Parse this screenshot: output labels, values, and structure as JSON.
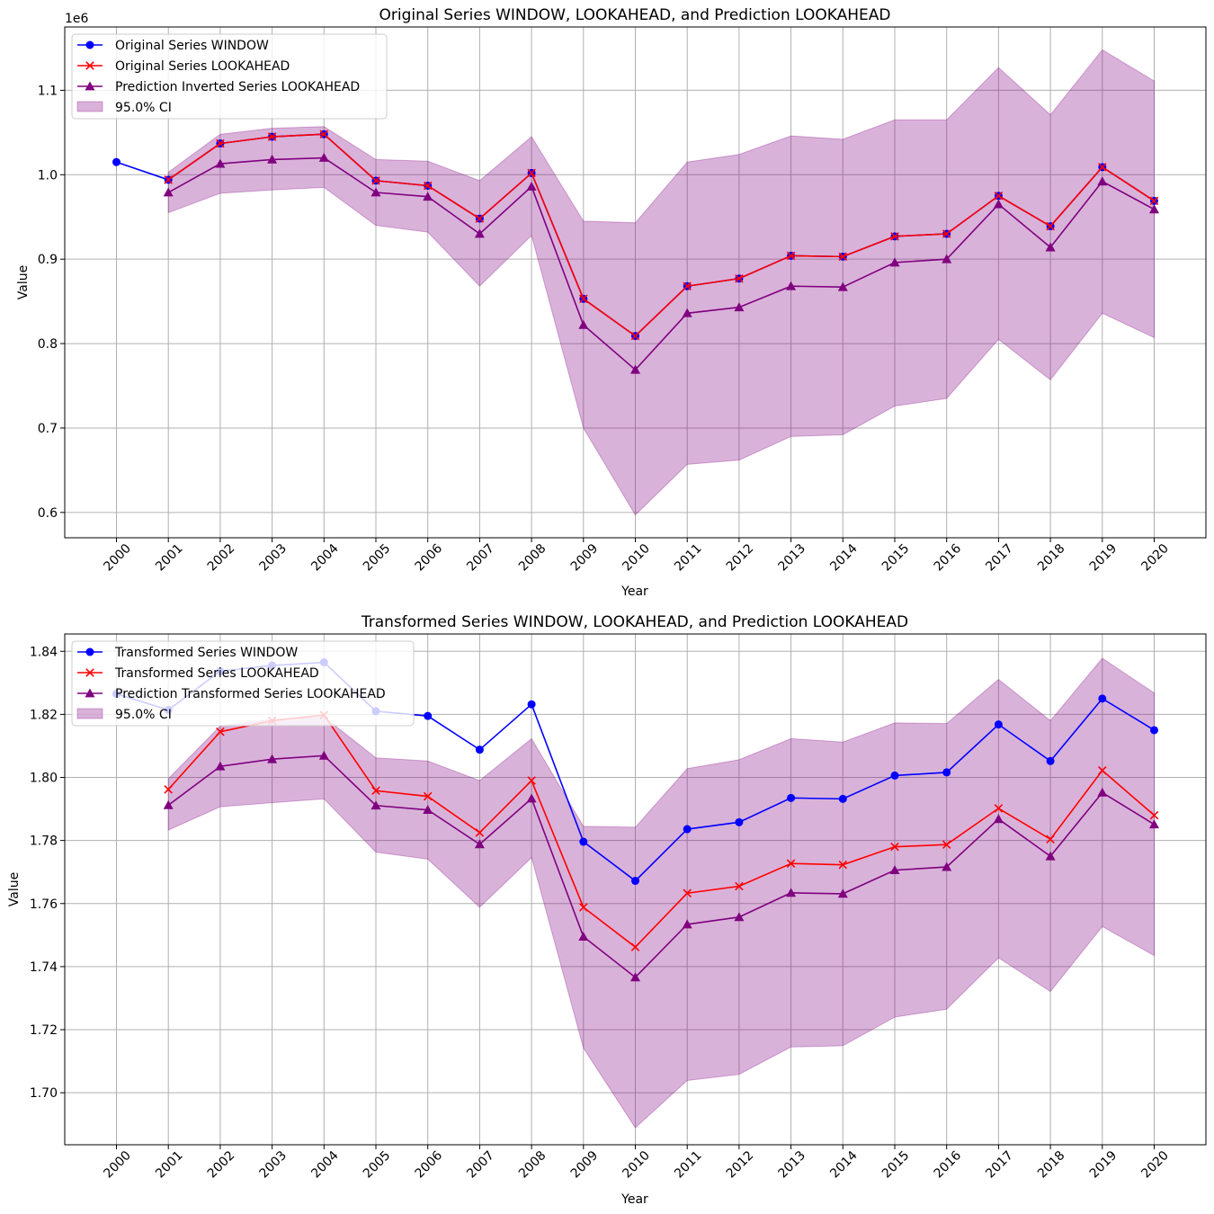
{
  "chart_data": [
    {
      "type": "line",
      "title": "Original Series WINDOW, LOOKAHEAD, and Prediction LOOKAHEAD",
      "xlabel": "Year",
      "ylabel": "Value",
      "y_offset_label": "1e6",
      "y_scale": 1000000,
      "ylim": [
        0.57,
        1.175
      ],
      "yticks": [
        0.6,
        0.7,
        0.8,
        0.9,
        1.0,
        1.1
      ],
      "ytick_labels": [
        "0.6",
        "0.7",
        "0.8",
        "0.9",
        "1.0",
        "1.1"
      ],
      "grid": true,
      "legend_position": "upper-left",
      "categories": [
        "2000",
        "2001",
        "2002",
        "2003",
        "2004",
        "2005",
        "2006",
        "2007",
        "2008",
        "2009",
        "2010",
        "2011",
        "2012",
        "2013",
        "2014",
        "2015",
        "2016",
        "2017",
        "2018",
        "2019",
        "2020"
      ],
      "series": [
        {
          "name": "Original Series WINDOW",
          "color": "#0000ff",
          "marker": "circle",
          "values": [
            1.015,
            0.994,
            1.037,
            1.045,
            1.048,
            0.993,
            0.987,
            0.948,
            1.002,
            0.853,
            0.809,
            0.868,
            0.877,
            0.904,
            0.903,
            0.927,
            0.93,
            0.975,
            0.939,
            1.009,
            0.969
          ]
        },
        {
          "name": "Original Series LOOKAHEAD",
          "color": "#ff0000",
          "marker": "x",
          "values": [
            null,
            0.994,
            1.037,
            1.045,
            1.048,
            0.993,
            0.987,
            0.948,
            1.002,
            0.853,
            0.809,
            0.868,
            0.877,
            0.904,
            0.903,
            0.927,
            0.93,
            0.975,
            0.939,
            1.009,
            0.969
          ]
        },
        {
          "name": "Prediction Inverted Series LOOKAHEAD",
          "color": "#800080",
          "marker": "triangle",
          "values": [
            null,
            0.979,
            1.013,
            1.018,
            1.02,
            0.979,
            0.974,
            0.93,
            0.986,
            0.822,
            0.769,
            0.836,
            0.843,
            0.868,
            0.867,
            0.896,
            0.9,
            0.965,
            0.914,
            0.992,
            0.959
          ]
        }
      ],
      "ci": {
        "name": "95.0% CI",
        "color": "#800080",
        "lower": [
          null,
          0.955,
          0.978,
          0.982,
          0.985,
          0.94,
          0.932,
          0.868,
          0.928,
          0.7,
          0.597,
          0.657,
          0.662,
          0.69,
          0.692,
          0.726,
          0.735,
          0.805,
          0.757,
          0.836,
          0.807
        ],
        "upper": [
          null,
          1.003,
          1.048,
          1.055,
          1.057,
          1.018,
          1.016,
          0.993,
          1.045,
          0.945,
          0.943,
          1.015,
          1.024,
          1.046,
          1.042,
          1.065,
          1.065,
          1.127,
          1.071,
          1.148,
          1.111
        ]
      }
    },
    {
      "type": "line",
      "title": "Transformed Series WINDOW, LOOKAHEAD, and Prediction LOOKAHEAD",
      "xlabel": "Year",
      "ylabel": "Value",
      "y_offset_label": "",
      "y_scale": 1,
      "ylim": [
        1.6835,
        1.8455
      ],
      "yticks": [
        1.7,
        1.72,
        1.74,
        1.76,
        1.78,
        1.8,
        1.82,
        1.84
      ],
      "ytick_labels": [
        "1.70",
        "1.72",
        "1.74",
        "1.76",
        "1.78",
        "1.80",
        "1.82",
        "1.84"
      ],
      "grid": true,
      "legend_position": "upper-left",
      "categories": [
        "2000",
        "2001",
        "2002",
        "2003",
        "2004",
        "2005",
        "2006",
        "2007",
        "2008",
        "2009",
        "2010",
        "2011",
        "2012",
        "2013",
        "2014",
        "2015",
        "2016",
        "2017",
        "2018",
        "2019",
        "2020"
      ],
      "series": [
        {
          "name": "Transformed Series WINDOW",
          "color": "#0000ff",
          "marker": "circle",
          "values": [
            1.8265,
            1.8214,
            1.8337,
            1.8355,
            1.8365,
            1.821,
            1.8195,
            1.8088,
            1.8232,
            1.7796,
            1.7672,
            1.7836,
            1.7858,
            1.7935,
            1.7932,
            1.8006,
            1.8016,
            1.8168,
            1.8052,
            1.825,
            1.815
          ]
        },
        {
          "name": "Transformed Series LOOKAHEAD",
          "color": "#ff0000",
          "marker": "x",
          "values": [
            null,
            1.7962,
            1.8145,
            1.818,
            1.8198,
            1.7958,
            1.794,
            1.7825,
            1.799,
            1.7588,
            1.7462,
            1.7633,
            1.7655,
            1.7727,
            1.7723,
            1.778,
            1.7787,
            1.7902,
            1.7804,
            1.8022,
            1.788
          ]
        },
        {
          "name": "Prediction Transformed Series LOOKAHEAD",
          "color": "#800080",
          "marker": "triangle",
          "values": [
            null,
            1.7912,
            1.8035,
            1.8058,
            1.8069,
            1.7911,
            1.7897,
            1.7788,
            1.7933,
            1.7495,
            1.7366,
            1.7534,
            1.7557,
            1.7634,
            1.7631,
            1.7706,
            1.7716,
            1.7868,
            1.775,
            1.7952,
            1.7851
          ]
        }
      ],
      "ci": {
        "name": "95.0% CI",
        "color": "#800080",
        "lower": [
          null,
          1.7833,
          1.7907,
          1.792,
          1.7932,
          1.7763,
          1.7741,
          1.7588,
          1.7746,
          1.7142,
          1.6889,
          1.7039,
          1.7058,
          1.7145,
          1.7149,
          1.724,
          1.7265,
          1.7428,
          1.7321,
          1.7527,
          1.7435
        ],
        "upper": [
          null,
          1.7996,
          1.8163,
          1.8184,
          1.8192,
          1.8062,
          1.8052,
          1.799,
          1.8123,
          1.7845,
          1.7842,
          1.8028,
          1.8056,
          1.8123,
          1.8112,
          1.8173,
          1.8171,
          1.8311,
          1.818,
          1.8378,
          1.8268
        ]
      }
    }
  ]
}
